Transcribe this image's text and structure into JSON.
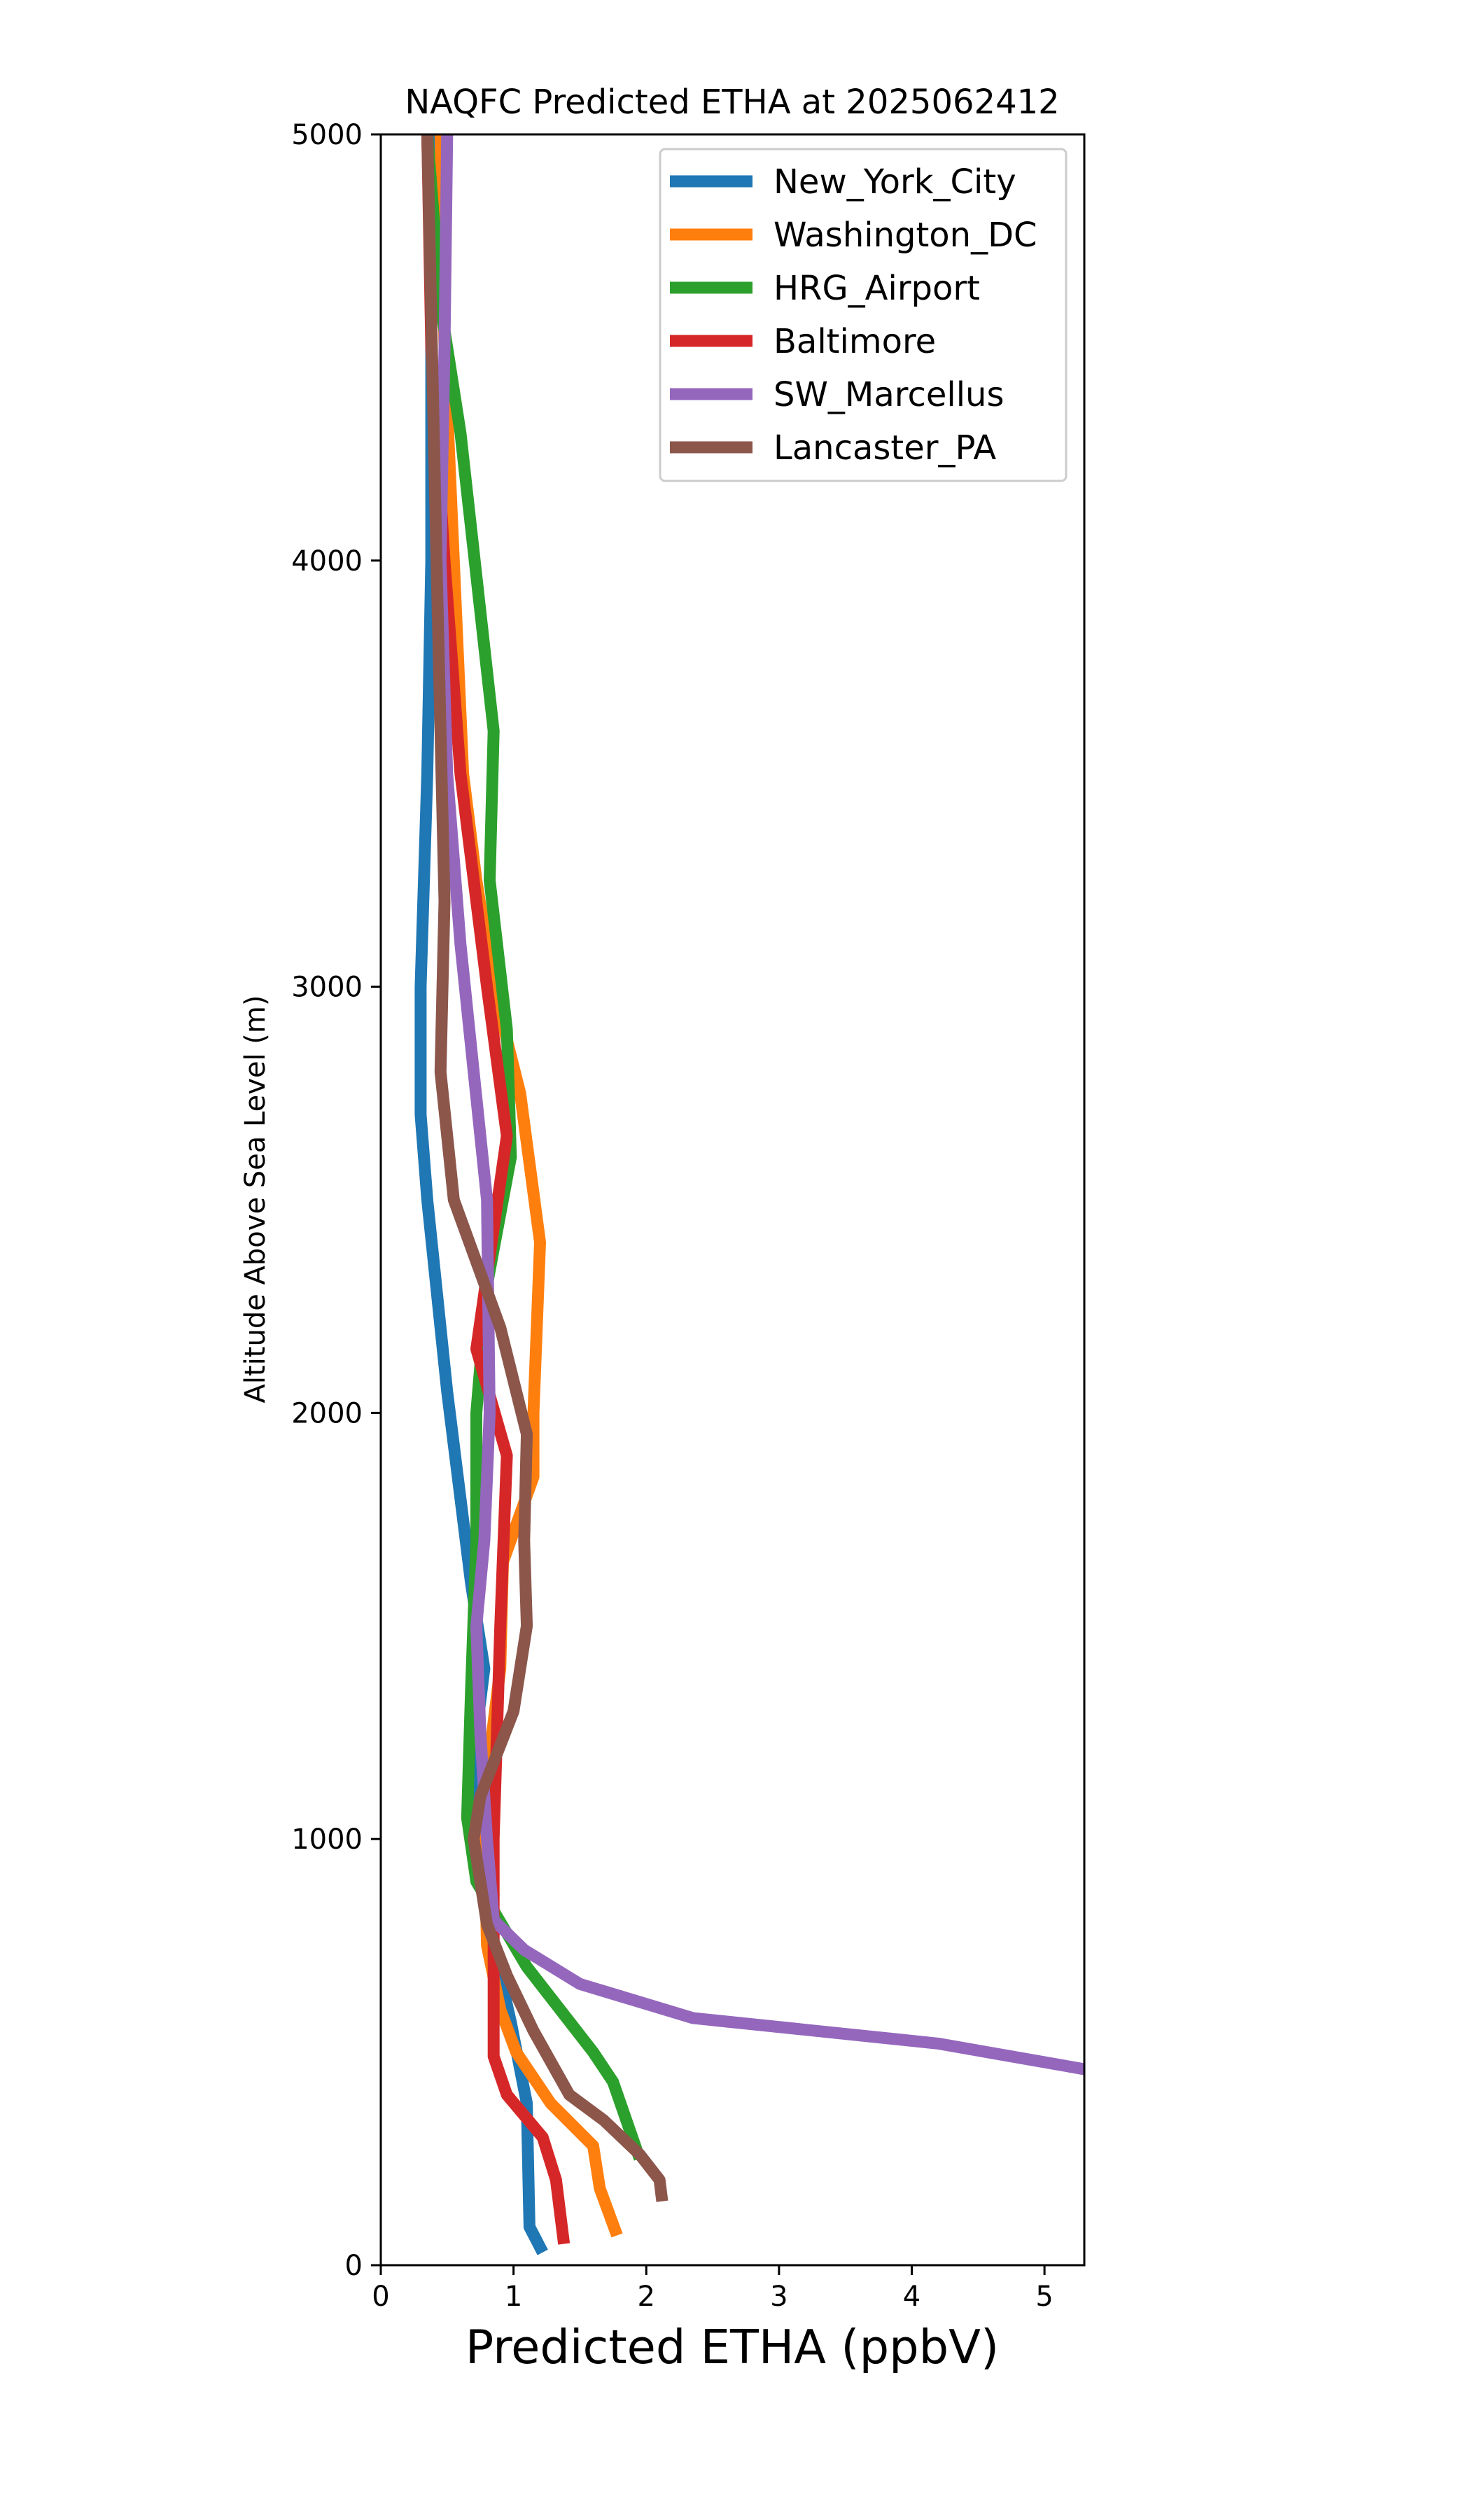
{
  "chart_data": {
    "type": "line",
    "title": "NAQFC Predicted ETHA at 2025062412",
    "xlabel": "Predicted ETHA (ppbV)",
    "ylabel": "Altitude Above Sea Level (m)",
    "xlim": [
      0,
      5.3
    ],
    "ylim": [
      0,
      5000
    ],
    "x_ticks": [
      0,
      1,
      2,
      3,
      4,
      5
    ],
    "y_ticks": [
      0,
      1000,
      2000,
      3000,
      4000,
      5000
    ],
    "grid": false,
    "legend_position": "top-right",
    "series": [
      {
        "name": "New_York_City",
        "color": "#1f77b4",
        "points": [
          [
            1.22,
            30
          ],
          [
            1.12,
            90
          ],
          [
            1.1,
            380
          ],
          [
            0.98,
            570
          ],
          [
            0.85,
            750
          ],
          [
            0.7,
            1000
          ],
          [
            0.72,
            1250
          ],
          [
            0.78,
            1400
          ],
          [
            0.68,
            1600
          ],
          [
            0.5,
            2050
          ],
          [
            0.45,
            2200
          ],
          [
            0.35,
            2500
          ],
          [
            0.3,
            2700
          ],
          [
            0.3,
            3000
          ],
          [
            0.35,
            3500
          ],
          [
            0.38,
            4000
          ],
          [
            0.38,
            4500
          ],
          [
            0.38,
            5000
          ]
        ]
      },
      {
        "name": "Washington_DC",
        "color": "#ff7f0e",
        "points": [
          [
            1.78,
            70
          ],
          [
            1.65,
            180
          ],
          [
            1.6,
            280
          ],
          [
            1.28,
            380
          ],
          [
            1.02,
            500
          ],
          [
            0.9,
            600
          ],
          [
            0.8,
            750
          ],
          [
            0.78,
            1000
          ],
          [
            0.82,
            1200
          ],
          [
            0.9,
            1400
          ],
          [
            0.92,
            1650
          ],
          [
            1.15,
            1850
          ],
          [
            1.15,
            2000
          ],
          [
            1.2,
            2400
          ],
          [
            1.05,
            2750
          ],
          [
            0.85,
            3000
          ],
          [
            0.72,
            3250
          ],
          [
            0.62,
            3500
          ],
          [
            0.55,
            4000
          ],
          [
            0.48,
            4500
          ],
          [
            0.45,
            5000
          ]
        ]
      },
      {
        "name": "HRG_Airport",
        "color": "#2ca02c",
        "points": [
          [
            1.95,
            250
          ],
          [
            1.75,
            430
          ],
          [
            1.6,
            500
          ],
          [
            1.4,
            580
          ],
          [
            1.1,
            700
          ],
          [
            0.72,
            900
          ],
          [
            0.65,
            1050
          ],
          [
            0.68,
            1350
          ],
          [
            0.72,
            1700
          ],
          [
            0.72,
            2000
          ],
          [
            0.8,
            2300
          ],
          [
            0.98,
            2600
          ],
          [
            0.95,
            2900
          ],
          [
            0.82,
            3250
          ],
          [
            0.85,
            3600
          ],
          [
            0.6,
            4300
          ],
          [
            0.45,
            4600
          ],
          [
            0.35,
            5000
          ]
        ]
      },
      {
        "name": "Baltimore",
        "color": "#d62728",
        "points": [
          [
            1.38,
            50
          ],
          [
            1.32,
            200
          ],
          [
            1.22,
            300
          ],
          [
            0.95,
            400
          ],
          [
            0.85,
            490
          ],
          [
            0.85,
            750
          ],
          [
            0.85,
            1000
          ],
          [
            0.9,
            1500
          ],
          [
            0.95,
            1900
          ],
          [
            0.72,
            2150
          ],
          [
            0.95,
            2650
          ],
          [
            0.8,
            3000
          ],
          [
            0.6,
            3500
          ],
          [
            0.48,
            4000
          ],
          [
            0.38,
            4500
          ],
          [
            0.35,
            5000
          ]
        ]
      },
      {
        "name": "SW_Marcellus",
        "color": "#9467bd",
        "points": [
          [
            5.3,
            460
          ],
          [
            4.2,
            520
          ],
          [
            2.35,
            580
          ],
          [
            1.5,
            660
          ],
          [
            1.08,
            740
          ],
          [
            0.85,
            810
          ],
          [
            0.8,
            1000
          ],
          [
            0.75,
            1250
          ],
          [
            0.72,
            1500
          ],
          [
            0.78,
            1700
          ],
          [
            0.82,
            2000
          ],
          [
            0.8,
            2500
          ],
          [
            0.7,
            2800
          ],
          [
            0.6,
            3100
          ],
          [
            0.5,
            3500
          ],
          [
            0.45,
            4000
          ],
          [
            0.48,
            4500
          ],
          [
            0.5,
            5000
          ]
        ]
      },
      {
        "name": "Lancaster_PA",
        "color": "#8c564b",
        "points": [
          [
            2.12,
            150
          ],
          [
            2.1,
            200
          ],
          [
            1.95,
            260
          ],
          [
            1.68,
            340
          ],
          [
            1.42,
            400
          ],
          [
            1.15,
            550
          ],
          [
            0.95,
            680
          ],
          [
            0.8,
            800
          ],
          [
            0.7,
            1000
          ],
          [
            0.75,
            1100
          ],
          [
            1.0,
            1300
          ],
          [
            1.1,
            1500
          ],
          [
            1.08,
            1700
          ],
          [
            1.1,
            1950
          ],
          [
            0.9,
            2200
          ],
          [
            0.55,
            2500
          ],
          [
            0.45,
            2800
          ],
          [
            0.48,
            3200
          ],
          [
            0.45,
            3600
          ],
          [
            0.42,
            4000
          ],
          [
            0.35,
            5000
          ]
        ]
      }
    ]
  }
}
